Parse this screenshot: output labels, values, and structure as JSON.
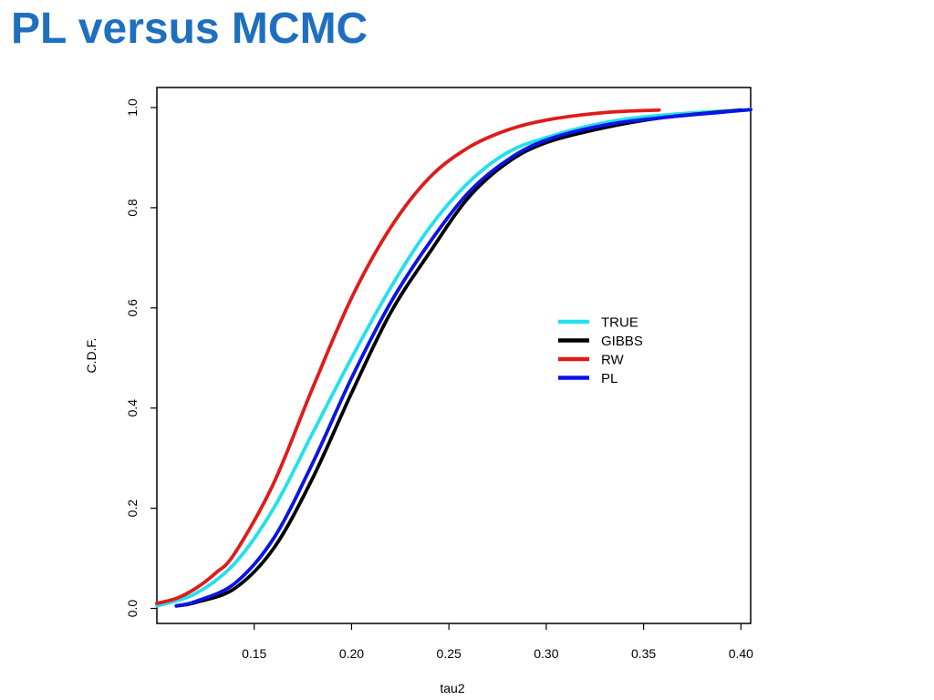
{
  "slide": {
    "title": "PL versus MCMC"
  },
  "colors": {
    "title": "#1f6fbf",
    "TRUE": "#22e0ee",
    "GIBBS": "#000000",
    "RW": "#e01b1b",
    "PL": "#0a14e6"
  },
  "chart_data": {
    "type": "line",
    "title": "",
    "xlabel": "tau2",
    "ylabel": "C.D.F.",
    "xlim": [
      0.1,
      0.405
    ],
    "ylim": [
      -0.03,
      1.04
    ],
    "xticks": [
      0.15,
      0.2,
      0.25,
      0.3,
      0.35,
      0.4
    ],
    "xtick_labels": [
      "0.15",
      "0.20",
      "0.25",
      "0.30",
      "0.35",
      "0.40"
    ],
    "yticks": [
      0.0,
      0.2,
      0.4,
      0.6,
      0.8,
      1.0
    ],
    "ytick_labels": [
      "0.0",
      "0.2",
      "0.4",
      "0.6",
      "0.8",
      "1.0"
    ],
    "grid": false,
    "legend_position": "center-right",
    "series": [
      {
        "name": "TRUE",
        "color": "#22e0ee",
        "x": [
          0.1,
          0.12,
          0.14,
          0.16,
          0.18,
          0.2,
          0.22,
          0.24,
          0.26,
          0.28,
          0.3,
          0.33,
          0.36,
          0.4,
          0.405
        ],
        "y": [
          0.005,
          0.03,
          0.09,
          0.2,
          0.35,
          0.5,
          0.64,
          0.76,
          0.85,
          0.91,
          0.94,
          0.97,
          0.985,
          0.995,
          0.997
        ]
      },
      {
        "name": "GIBBS",
        "color": "#000000",
        "x": [
          0.11,
          0.12,
          0.14,
          0.16,
          0.18,
          0.2,
          0.22,
          0.24,
          0.26,
          0.28,
          0.3,
          0.33,
          0.36,
          0.4
        ],
        "y": [
          0.005,
          0.012,
          0.04,
          0.12,
          0.26,
          0.43,
          0.59,
          0.71,
          0.82,
          0.89,
          0.93,
          0.96,
          0.98,
          0.995
        ]
      },
      {
        "name": "RW",
        "color": "#e01b1b",
        "x": [
          0.1,
          0.11,
          0.12,
          0.13,
          0.14,
          0.16,
          0.18,
          0.2,
          0.22,
          0.24,
          0.26,
          0.28,
          0.3,
          0.33,
          0.358
        ],
        "y": [
          0.01,
          0.02,
          0.04,
          0.07,
          0.11,
          0.25,
          0.44,
          0.62,
          0.76,
          0.86,
          0.92,
          0.955,
          0.975,
          0.99,
          0.995
        ]
      },
      {
        "name": "PL",
        "color": "#0a14e6",
        "x": [
          0.11,
          0.12,
          0.14,
          0.16,
          0.18,
          0.2,
          0.22,
          0.24,
          0.26,
          0.28,
          0.3,
          0.33,
          0.36,
          0.4,
          0.405
        ],
        "y": [
          0.005,
          0.014,
          0.05,
          0.14,
          0.29,
          0.46,
          0.61,
          0.73,
          0.83,
          0.895,
          0.935,
          0.965,
          0.98,
          0.994,
          0.996
        ]
      }
    ]
  }
}
